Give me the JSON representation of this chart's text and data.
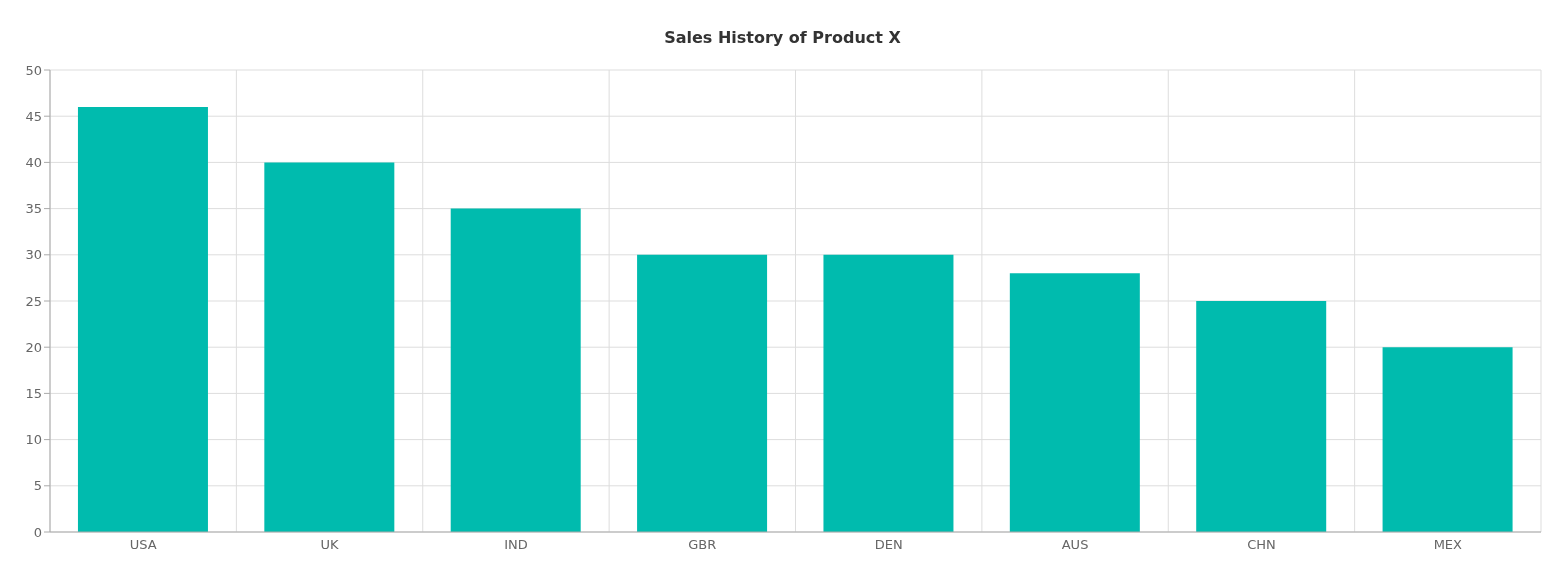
{
  "chart_data": {
    "type": "bar",
    "title": "Sales History of Product X",
    "categories": [
      "USA",
      "UK",
      "IND",
      "GBR",
      "DEN",
      "AUS",
      "CHN",
      "MEX"
    ],
    "values": [
      46,
      40,
      35,
      30,
      30,
      28,
      25,
      20
    ],
    "color": "#00bbae",
    "ylim": [
      0,
      50
    ],
    "yticks": [
      0,
      5,
      10,
      15,
      20,
      25,
      30,
      35,
      40,
      45,
      50
    ],
    "grid": true
  }
}
